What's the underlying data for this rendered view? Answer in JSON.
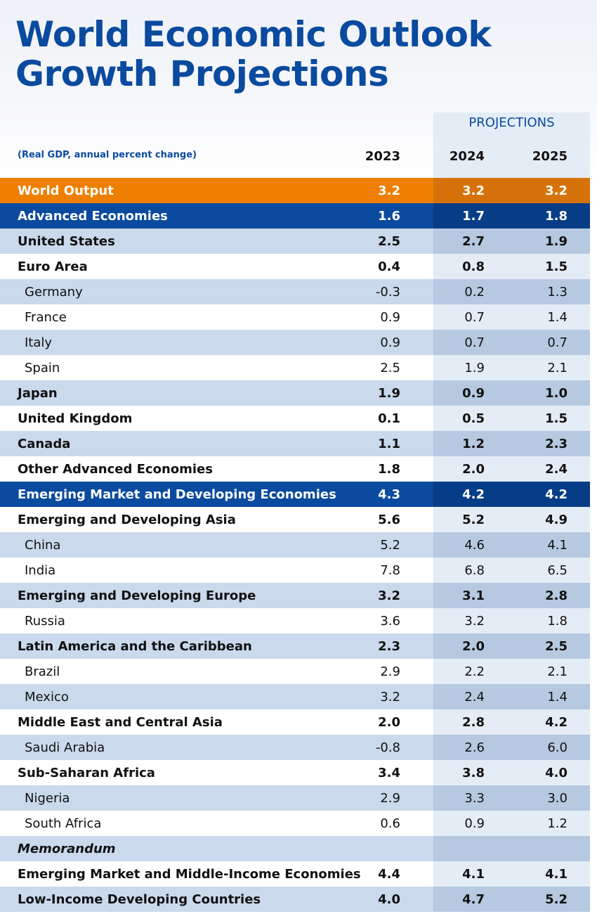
{
  "header": {
    "title_lines": [
      "World Economic Outlook",
      "Growth Projections"
    ],
    "projections_label": "PROJECTIONS",
    "unit_note": "(Real GDP, annual percent change)",
    "columns": [
      "2023",
      "2024",
      "2025"
    ]
  },
  "table": {
    "rows": [
      {
        "label": "World Output",
        "values": [
          "3.2",
          "3.2",
          "3.2"
        ]
      },
      {
        "label": "Advanced Economies",
        "values": [
          "1.6",
          "1.7",
          "1.8"
        ]
      },
      {
        "label": "United States",
        "values": [
          "2.5",
          "2.7",
          "1.9"
        ]
      },
      {
        "label": "Euro Area",
        "values": [
          "0.4",
          "0.8",
          "1.5"
        ]
      },
      {
        "label": "Germany",
        "values": [
          "-0.3",
          "0.2",
          "1.3"
        ]
      },
      {
        "label": "France",
        "values": [
          "0.9",
          "0.7",
          "1.4"
        ]
      },
      {
        "label": "Italy",
        "values": [
          "0.9",
          "0.7",
          "0.7"
        ]
      },
      {
        "label": "Spain",
        "values": [
          "2.5",
          "1.9",
          "2.1"
        ]
      },
      {
        "label": "Japan",
        "values": [
          "1.9",
          "0.9",
          "1.0"
        ]
      },
      {
        "label": "United Kingdom",
        "values": [
          "0.1",
          "0.5",
          "1.5"
        ]
      },
      {
        "label": "Canada",
        "values": [
          "1.1",
          "1.2",
          "2.3"
        ]
      },
      {
        "label": "Other Advanced Economies",
        "values": [
          "1.8",
          "2.0",
          "2.4"
        ]
      },
      {
        "label": "Emerging Market and Developing Economies",
        "values": [
          "4.3",
          "4.2",
          "4.2"
        ]
      },
      {
        "label": "Emerging and Developing Asia",
        "values": [
          "5.6",
          "5.2",
          "4.9"
        ]
      },
      {
        "label": "China",
        "values": [
          "5.2",
          "4.6",
          "4.1"
        ]
      },
      {
        "label": "India",
        "values": [
          "7.8",
          "6.8",
          "6.5"
        ]
      },
      {
        "label": "Emerging and Developing Europe",
        "values": [
          "3.2",
          "3.1",
          "2.8"
        ]
      },
      {
        "label": "Russia",
        "values": [
          "3.6",
          "3.2",
          "1.8"
        ]
      },
      {
        "label": "Latin America and the Caribbean",
        "values": [
          "2.3",
          "2.0",
          "2.5"
        ]
      },
      {
        "label": "Brazil",
        "values": [
          "2.9",
          "2.2",
          "2.1"
        ]
      },
      {
        "label": "Mexico",
        "values": [
          "3.2",
          "2.4",
          "1.4"
        ]
      },
      {
        "label": "Middle East and Central Asia",
        "values": [
          "2.0",
          "2.8",
          "4.2"
        ]
      },
      {
        "label": "Saudi Arabia",
        "values": [
          "-0.8",
          "2.6",
          "6.0"
        ]
      },
      {
        "label": "Sub-Saharan Africa",
        "values": [
          "3.4",
          "3.8",
          "4.0"
        ]
      },
      {
        "label": "Nigeria",
        "values": [
          "2.9",
          "3.3",
          "3.0"
        ]
      },
      {
        "label": "South Africa",
        "values": [
          "0.6",
          "0.9",
          "1.2"
        ]
      },
      {
        "label": "Memorandum"
      },
      {
        "label": "Emerging Market and Middle-Income Economies",
        "values": [
          "4.4",
          "4.1",
          "4.1"
        ]
      },
      {
        "label": "Low-Income Developing Countries",
        "values": [
          "4.0",
          "4.7",
          "5.2"
        ]
      }
    ]
  }
}
